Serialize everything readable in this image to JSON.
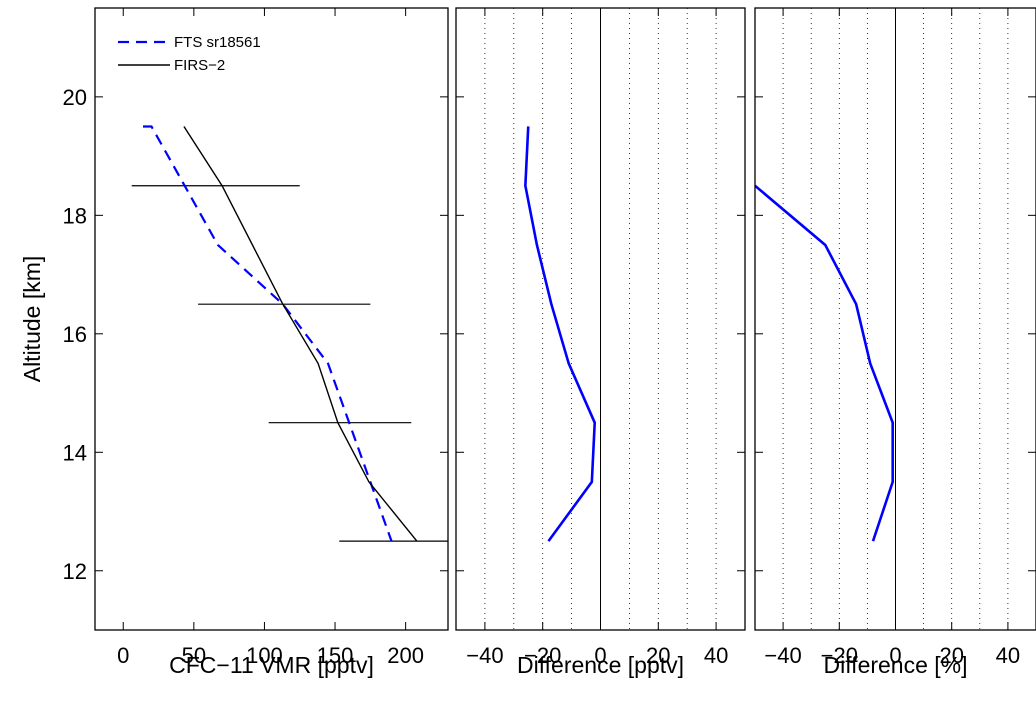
{
  "chart_data": [
    {
      "type": "line",
      "xlabel": "CFC−11  VMR [pptv]",
      "ylabel": "Altitude [km]",
      "xlim": [
        -20,
        230
      ],
      "ylim": [
        11,
        21.5
      ],
      "xticks": [
        0,
        50,
        100,
        150,
        200
      ],
      "xtick_labels": [
        "0",
        "50",
        "100",
        "150",
        "200"
      ],
      "yticks": [
        12,
        14,
        16,
        18,
        20
      ],
      "ytick_labels": [
        "12",
        "14",
        "16",
        "18",
        "20"
      ],
      "grid": false,
      "legend_position": "top-left",
      "series": [
        {
          "name": "FTS sr18561",
          "color": "#0000ff",
          "style": "dashed",
          "x": [
            14,
            20,
            67,
            113,
            145,
            175,
            190
          ],
          "y": [
            19.5,
            19.5,
            17.5,
            16.5,
            15.5,
            13.5,
            12.5
          ]
        },
        {
          "name": "FIRS−2",
          "color": "#000000",
          "style": "solid",
          "x": [
            43,
            70,
            113,
            138,
            152,
            174,
            208
          ],
          "y": [
            19.5,
            18.5,
            16.5,
            15.5,
            14.5,
            13.5,
            12.5
          ],
          "error_bars": [
            {
              "y": 18.5,
              "xmin": 6,
              "xmax": 125
            },
            {
              "y": 16.5,
              "xmin": 53,
              "xmax": 175
            },
            {
              "y": 14.5,
              "xmin": 103,
              "xmax": 204
            },
            {
              "y": 12.5,
              "xmin": 153,
              "xmax": 230
            }
          ]
        }
      ]
    },
    {
      "type": "line",
      "xlabel": "Difference [pptv]",
      "ylabel": "",
      "xlim": [
        -50,
        50
      ],
      "ylim": [
        11,
        21.5
      ],
      "xticks": [
        -40,
        -20,
        0,
        20,
        40
      ],
      "xtick_labels": [
        "−40",
        "−20",
        "0",
        "20",
        "40"
      ],
      "grid": "vertical-dotted",
      "series": [
        {
          "color": "#0000ff",
          "style": "solid",
          "x": [
            -25,
            -26,
            -22,
            -17,
            -11,
            -2,
            -3,
            -18
          ],
          "y": [
            19.5,
            18.5,
            17.5,
            16.5,
            15.5,
            14.5,
            13.5,
            12.5
          ]
        }
      ]
    },
    {
      "type": "line",
      "xlabel": "Difference [%]",
      "ylabel": "",
      "xlim": [
        -50,
        50
      ],
      "ylim": [
        11,
        21.5
      ],
      "xticks": [
        -40,
        -20,
        0,
        20,
        40
      ],
      "xtick_labels": [
        "−40",
        "−20",
        "0",
        "20",
        "40"
      ],
      "grid": "vertical-dotted",
      "series": [
        {
          "color": "#0000ff",
          "style": "solid",
          "x": [
            -50,
            -25,
            -14,
            -9,
            -1,
            -1,
            -8
          ],
          "y": [
            18.5,
            17.5,
            16.5,
            15.5,
            14.5,
            13.5,
            12.5
          ]
        }
      ]
    }
  ]
}
